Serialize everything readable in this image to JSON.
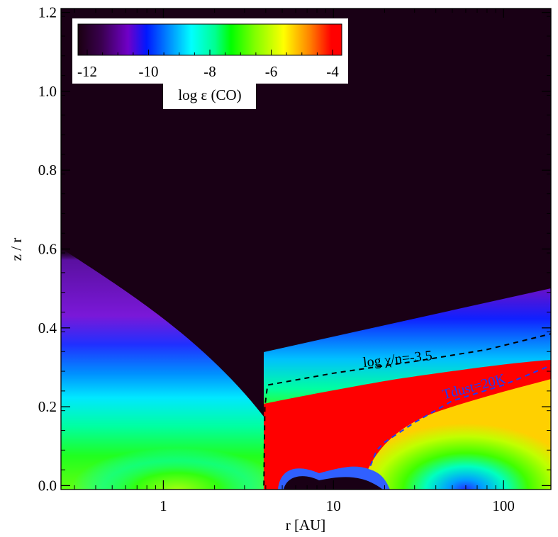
{
  "chart_data": {
    "type": "heatmap",
    "title": "",
    "xlabel": "r [AU]",
    "ylabel": "z / r",
    "x_scale": "log",
    "xlim": [
      0.25,
      190
    ],
    "ylim": [
      -0.01,
      1.21
    ],
    "x_ticks": [
      {
        "value": 1,
        "label": "1"
      },
      {
        "value": 10,
        "label": "10"
      },
      {
        "value": 100,
        "label": "100"
      }
    ],
    "y_ticks": [
      {
        "value": 0.0,
        "label": "0.0"
      },
      {
        "value": 0.2,
        "label": "0.2"
      },
      {
        "value": 0.4,
        "label": "0.4"
      },
      {
        "value": 0.6,
        "label": "0.6"
      },
      {
        "value": 0.8,
        "label": "0.8"
      },
      {
        "value": 1.0,
        "label": "1.0"
      },
      {
        "value": 1.2,
        "label": "1.2"
      }
    ],
    "colorbar": {
      "label": "log ε (CO)",
      "range": [
        -12.3,
        -3.7
      ],
      "ticks": [
        {
          "value": -12,
          "label": "-12"
        },
        {
          "value": -10,
          "label": "-10"
        },
        {
          "value": -8,
          "label": "-8"
        },
        {
          "value": -6,
          "label": "-6"
        },
        {
          "value": -4,
          "label": "-4"
        }
      ],
      "colormap": [
        "#1a0010",
        "#3a0050",
        "#7000c8",
        "#0018ff",
        "#00a0ff",
        "#00ffff",
        "#00ff90",
        "#00ff00",
        "#80ff00",
        "#ffff00",
        "#ff8000",
        "#ff0000"
      ],
      "placement": "top-left"
    },
    "background_color": "#190015",
    "contours": [
      {
        "label": "log χ/n=-3.5",
        "color": "#000000",
        "style": "dashed",
        "r": [
          3.9,
          3.95,
          4.1,
          10,
          30,
          80,
          190
        ],
        "z": [
          0.0,
          0.2,
          0.255,
          0.285,
          0.315,
          0.345,
          0.385
        ]
      },
      {
        "label": "Tdust=20K",
        "color": "#1a3cff",
        "style": "dashed",
        "r": [
          16.5,
          18,
          20,
          30,
          50,
          100,
          190
        ],
        "z": [
          0.05,
          0.09,
          0.11,
          0.16,
          0.215,
          0.255,
          0.305
        ]
      }
    ],
    "regions": [
      {
        "description_value": "inner disk surface layer",
        "r_range": [
          0.25,
          3.9
        ],
        "log_eps_range": [
          -11.5,
          -9.5
        ]
      },
      {
        "description_value": "inner disk midplane",
        "r_range": [
          0.25,
          3.9
        ],
        "log_eps_range": [
          -8.5,
          -7.0
        ]
      },
      {
        "description_value": "outer disk warm molecular layer",
        "r_range": [
          3.9,
          190
        ],
        "log_eps_range": [
          -4.0,
          -4.0
        ]
      },
      {
        "description_value": "outer disk freeze-out midplane",
        "r_range": [
          20,
          190
        ],
        "log_eps_range": [
          -8.0,
          -6.0
        ]
      }
    ]
  }
}
